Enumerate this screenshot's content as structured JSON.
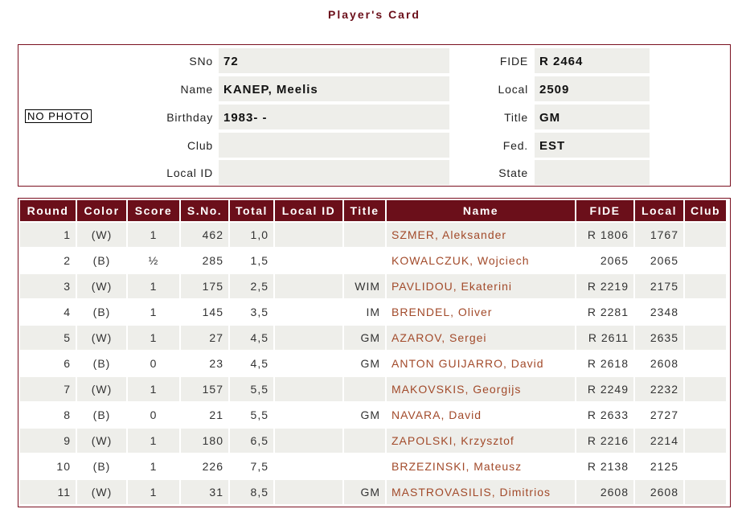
{
  "page": {
    "title": "Player's Card"
  },
  "player": {
    "no_photo": "NO PHOTO",
    "fields": [
      {
        "label": "SNo",
        "value": "72",
        "label2": "FIDE",
        "value2": "R 2464"
      },
      {
        "label": "Name",
        "value": "KANEP, Meelis",
        "label2": "Local",
        "value2": "2509"
      },
      {
        "label": "Birthday",
        "value": "1983- -",
        "label2": "Title",
        "value2": "GM"
      },
      {
        "label": "Club",
        "value": "",
        "label2": "Fed.",
        "value2": "EST"
      },
      {
        "label": "Local ID",
        "value": "",
        "label2": "State",
        "value2": ""
      }
    ]
  },
  "results": {
    "headers": [
      "Round",
      "Color",
      "Score",
      "S.No.",
      "Total",
      "Local ID",
      "Title",
      "Name",
      "FIDE",
      "Local",
      "Club"
    ],
    "rows": [
      [
        "1",
        "(W)",
        "1",
        "462",
        "1,0",
        "",
        "",
        "SZMER, Aleksander",
        "R 1806",
        "1767",
        ""
      ],
      [
        "2",
        "(B)",
        "½",
        "285",
        "1,5",
        "",
        "",
        "KOWALCZUK, Wojciech",
        "2065",
        "2065",
        ""
      ],
      [
        "3",
        "(W)",
        "1",
        "175",
        "2,5",
        "",
        "WIM",
        "PAVLIDOU, Ekaterini",
        "R 2219",
        "2175",
        ""
      ],
      [
        "4",
        "(B)",
        "1",
        "145",
        "3,5",
        "",
        "IM",
        "BRENDEL, Oliver",
        "R 2281",
        "2348",
        ""
      ],
      [
        "5",
        "(W)",
        "1",
        "27",
        "4,5",
        "",
        "GM",
        "AZAROV, Sergei",
        "R 2611",
        "2635",
        ""
      ],
      [
        "6",
        "(B)",
        "0",
        "23",
        "4,5",
        "",
        "GM",
        "ANTON GUIJARRO, David",
        "R 2618",
        "2608",
        ""
      ],
      [
        "7",
        "(W)",
        "1",
        "157",
        "5,5",
        "",
        "",
        "MAKOVSKIS, Georgijs",
        "R 2249",
        "2232",
        ""
      ],
      [
        "8",
        "(B)",
        "0",
        "21",
        "5,5",
        "",
        "GM",
        "NAVARA, David",
        "R 2633",
        "2727",
        ""
      ],
      [
        "9",
        "(W)",
        "1",
        "180",
        "6,5",
        "",
        "",
        "ZAPOLSKI, Krzysztof",
        "R 2216",
        "2214",
        ""
      ],
      [
        "10",
        "(B)",
        "1",
        "226",
        "7,5",
        "",
        "",
        "BRZEZINSKI, Mateusz",
        "R 2138",
        "2125",
        ""
      ],
      [
        "11",
        "(W)",
        "1",
        "31",
        "8,5",
        "",
        "GM",
        "MASTROVASILIS, Dimitrios",
        "2608",
        "2608",
        ""
      ]
    ]
  }
}
